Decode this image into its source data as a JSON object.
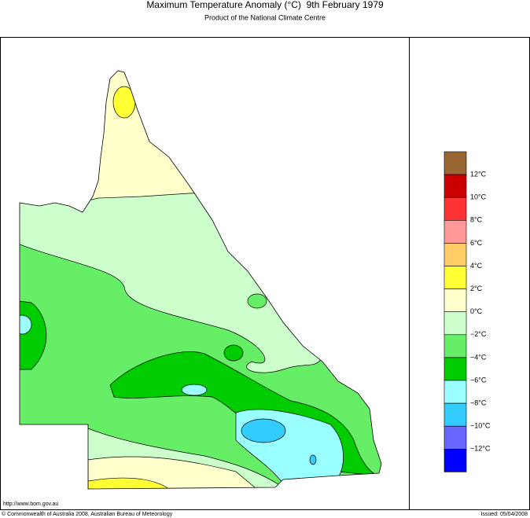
{
  "header": {
    "title": "Maximum Temperature Anomaly (°C)  9th February 1979",
    "subtitle": "Product of the National Climate Centre"
  },
  "legend": {
    "colors": [
      "#996633",
      "#cc0000",
      "#ff3333",
      "#ff9999",
      "#ffcc66",
      "#ffff33",
      "#ffffcc",
      "#ccffcc",
      "#66ee66",
      "#00cc00",
      "#99ffff",
      "#33ccff",
      "#6666ff",
      "#0000ff"
    ],
    "labels": [
      "12°C",
      "10°C",
      "8°C",
      "6°C",
      "4°C",
      "2°C",
      "0°C",
      "−2°C",
      "−4°C",
      "−6°C",
      "−8°C",
      "−10°C",
      "−12°C"
    ]
  },
  "footer": {
    "url": "http://www.bom.gov.au",
    "copyright": "© Commonwealth of Australia 2008, Australian Bureau of Meteorology",
    "issued": "Issued: 05/04/2008"
  }
}
